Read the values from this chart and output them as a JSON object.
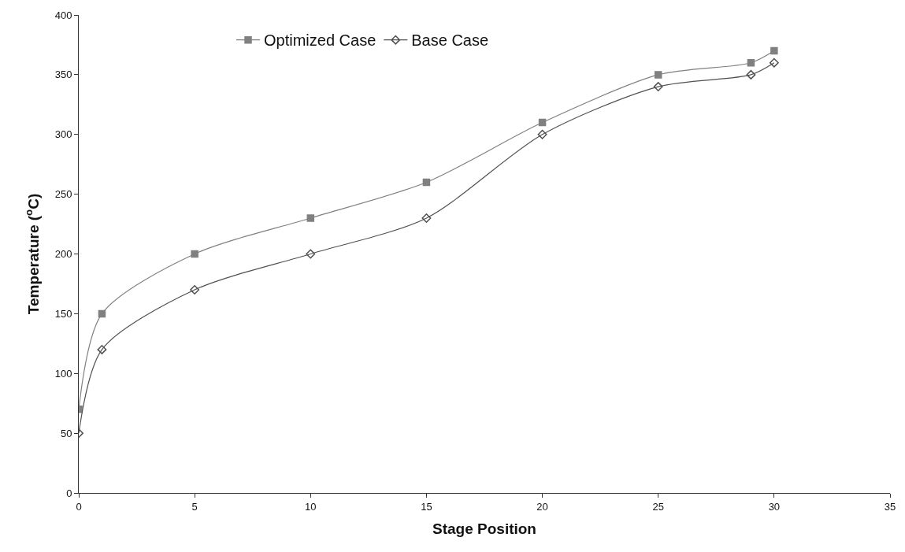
{
  "chart_data": {
    "type": "line",
    "xlabel": "Stage Position",
    "ylabel": "Temperature ($^{o}$C)",
    "x": [
      0,
      1,
      5,
      10,
      15,
      20,
      25,
      29,
      30
    ],
    "series": [
      {
        "name": "Optimized Case",
        "color": "#808080",
        "marker": "square",
        "values": [
          70,
          150,
          200,
          230,
          260,
          310,
          350,
          360,
          370
        ]
      },
      {
        "name": "Base Case",
        "color": "#505050",
        "marker": "diamond",
        "values": [
          50,
          120,
          170,
          200,
          230,
          300,
          340,
          350,
          360
        ]
      }
    ],
    "xlim": [
      0,
      35
    ],
    "xticks": [
      0,
      5,
      10,
      15,
      20,
      25,
      30,
      35
    ],
    "ylim": [
      0,
      400
    ],
    "yticks": [
      0,
      50,
      100,
      150,
      200,
      250,
      300,
      350,
      400
    ],
    "legend": "top"
  }
}
